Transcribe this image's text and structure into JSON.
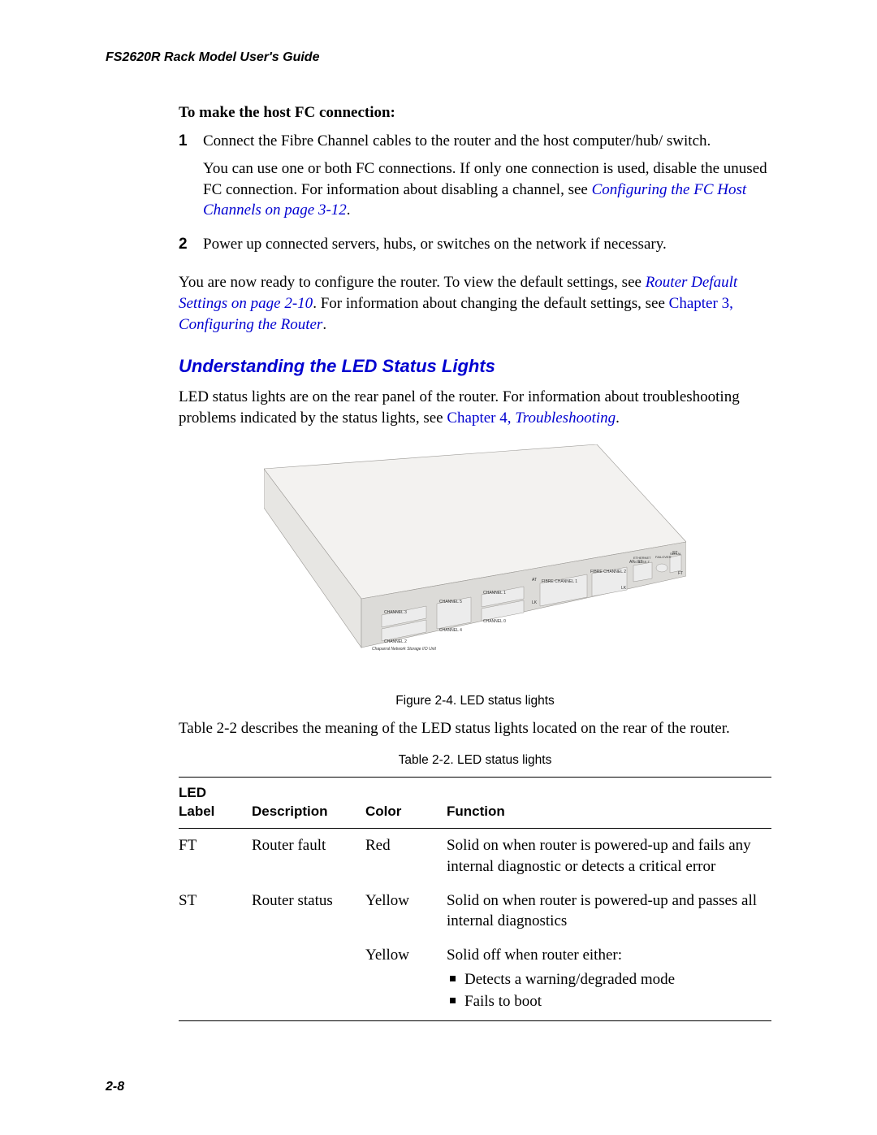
{
  "running_header": "FS2620R Rack Model User's Guide",
  "intro": {
    "subheading": "To make the host FC connection:",
    "steps": [
      {
        "num": "1",
        "p1": "Connect the Fibre Channel cables to the router and the host computer/hub/ switch.",
        "p2a": "You can use one or both FC connections. If only one connection is used, disable the unused FC connection. For information about disabling a channel, see ",
        "p2_link": "Configuring the FC Host Channels on page 3-12",
        "p2b": "."
      },
      {
        "num": "2",
        "p1": "Power up connected servers, hubs, or switches on the network if necessary."
      }
    ],
    "after_a": "You are now ready to configure the router. To view the default settings, see ",
    "after_link1": "Router Default Settings on page 2-10",
    "after_b": ". For information about changing the default settings, see ",
    "after_link2a": "Chapter 3, ",
    "after_link2b": "Configuring the Router",
    "after_c": "."
  },
  "section": {
    "title": "Understanding the LED Status Lights",
    "p1a": "LED status lights are on the rear panel of the router. For information about troubleshooting problems indicated by the status lights, see ",
    "p1_link_a": "Chapter 4, ",
    "p1_link_b": "Troubleshooting",
    "p1b": "."
  },
  "figure": {
    "caption": "Figure 2-4. LED status lights",
    "labels": {
      "ch3": "CHANNEL 3",
      "ch2": "CHANNEL 2",
      "ch5": "CHANNEL 5",
      "ch4": "CHANNEL 4",
      "nsu": "Chaparral Network Storage I/O Unit",
      "ch1": "CHANNEL 1",
      "ch0": "CHANNEL 0",
      "fc1": "FIBRE CHANNEL 1",
      "fc2": "FIBRE CHANNEL 2",
      "at": "AT",
      "lk1": "LK",
      "lk2": "LK",
      "af": "AF",
      "st": "ST",
      "eth": "ETHERNET",
      "baset": "10 BASE-T",
      "failover": "FAILOVER",
      "serial": "SERIAL",
      "ft": "FT",
      "stR": "ST"
    },
    "colors": {
      "body_light": "#f3f2f0",
      "body_mid": "#e7e6e3",
      "body_dark": "#dcdbd8",
      "edge": "#9a9894",
      "port_fill": "#ececec",
      "text": "#333333"
    }
  },
  "post_figure": "Table 2-2 describes the meaning of the LED status lights located on the rear of the router.",
  "table": {
    "caption": "Table 2-2. LED status lights",
    "headers": {
      "label": "LED Label",
      "desc": "Description",
      "color": "Color",
      "func": "Function"
    },
    "rows": [
      {
        "label": "FT",
        "desc": "Router fault",
        "color": "Red",
        "func_text": "Solid on when router is powered-up and fails any internal diagnostic or detects a critical error"
      },
      {
        "label": "ST",
        "desc": "Router status",
        "color": "Yellow",
        "func_text": "Solid on when router is powered-up and passes all internal diagnostics"
      },
      {
        "label": "",
        "desc": "",
        "color": "Yellow",
        "func_text": "Solid off when router either:",
        "bullets": [
          "Detects a warning/degraded mode",
          "Fails to boot"
        ]
      }
    ]
  },
  "page_num": "2-8"
}
